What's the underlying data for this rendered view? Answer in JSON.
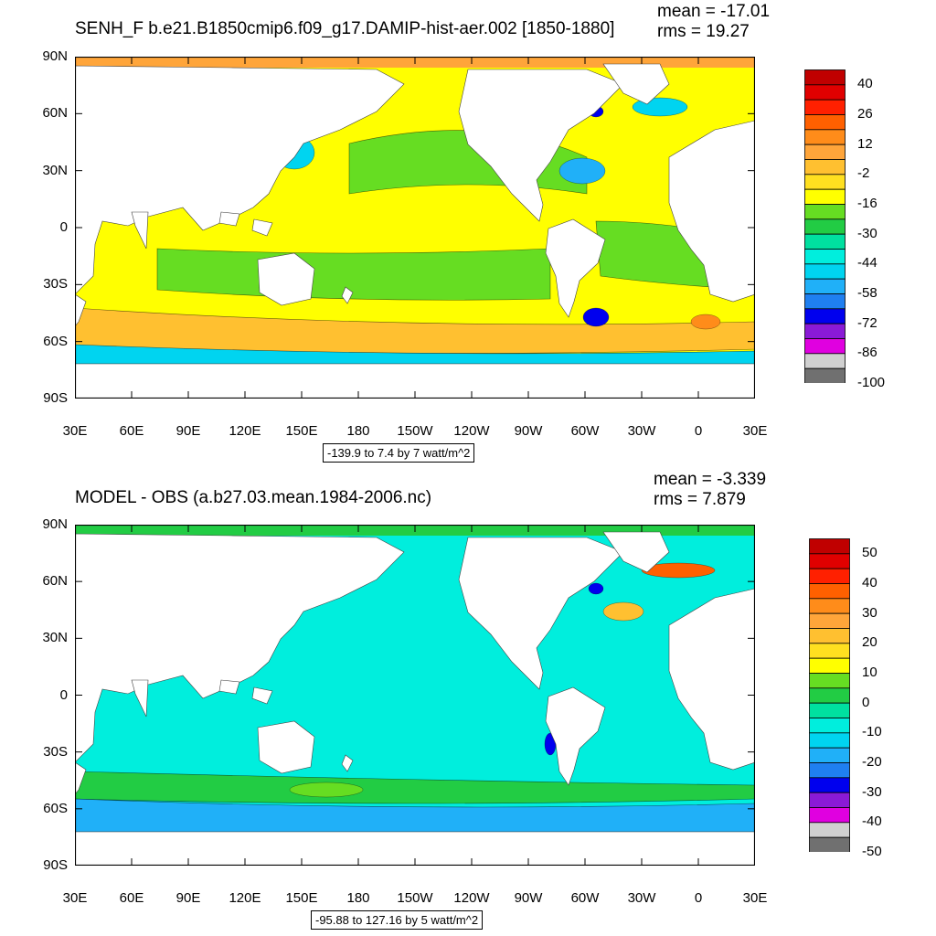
{
  "top": {
    "title": "SENH_F b.e21.B1850cmip6.f09_g17.DAMIP-hist-aer.002 [1850-1880]",
    "mean_text": "mean = -17.01",
    "rms_text": "rms = 19.27",
    "range_text": "-139.9 to 7.4 by 7 watt/m^2",
    "colorbar": {
      "labels": [
        "40",
        "26",
        "12",
        "-2",
        "-16",
        "-30",
        "-44",
        "-58",
        "-72",
        "-86",
        "-100"
      ],
      "colors": [
        "#c00000",
        "#e00000",
        "#ff2000",
        "#ff6000",
        "#ff8c1a",
        "#ffa53a",
        "#ffc030",
        "#ffe020",
        "#ffff00",
        "#66dd22",
        "#22cc44",
        "#00e0a0",
        "#00eedd",
        "#00d4f0",
        "#20b0f8",
        "#1f7ff0",
        "#0000ee",
        "#8a1ad6",
        "#e000e0",
        "#d0d0d0",
        "#707070"
      ]
    }
  },
  "bottom": {
    "title": "MODEL - OBS (a.b27.03.mean.1984-2006.nc)",
    "mean_text": "mean = -3.339",
    "rms_text": "rms = 7.879",
    "range_text": "-95.88 to 127.16 by 5 watt/m^2",
    "colorbar": {
      "labels": [
        "50",
        "40",
        "30",
        "20",
        "10",
        "0",
        "-10",
        "-20",
        "-30",
        "-40",
        "-50"
      ],
      "colors": [
        "#c00000",
        "#e00000",
        "#ff2000",
        "#ff6000",
        "#ff8c1a",
        "#ffa53a",
        "#ffc030",
        "#ffe020",
        "#ffff00",
        "#66dd22",
        "#22cc44",
        "#00e0a0",
        "#00eedd",
        "#00d4f0",
        "#20b0f8",
        "#1f7ff0",
        "#0000ee",
        "#8a1ad6",
        "#e000e0",
        "#d0d0d0",
        "#707070"
      ]
    }
  },
  "axes": {
    "lat_labels": [
      "90N",
      "60N",
      "30N",
      "0",
      "30S",
      "60S",
      "90S"
    ],
    "lon_labels": [
      "30E",
      "60E",
      "90E",
      "120E",
      "150E",
      "180",
      "150W",
      "120W",
      "90W",
      "60W",
      "30W",
      "0",
      "30E"
    ]
  },
  "map_style": {
    "land_color": "#ffffff",
    "top_ocean_base": "#ffff00",
    "top_band_color": "#66dd22",
    "top_ice_color": "#ffa53a",
    "bottom_ocean_base": "#00eedd",
    "bottom_ice_color": "#22cc44"
  }
}
